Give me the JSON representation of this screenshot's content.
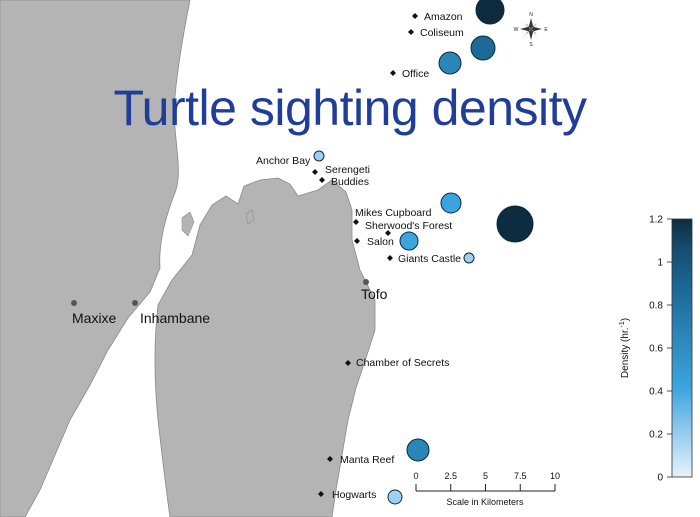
{
  "title": "Turtle sighting density",
  "towns": [
    {
      "name": "Maxixe"
    },
    {
      "name": "Inhambane"
    },
    {
      "name": "Tofo"
    }
  ],
  "sites": [
    {
      "name": "Amazon",
      "density": 1.1
    },
    {
      "name": "Coliseum",
      "density": 0.7
    },
    {
      "name": "Office",
      "density": 0.5
    },
    {
      "name": "Anchor Bay",
      "density": 0.2
    },
    {
      "name": "Serengeti",
      "density": 0.0
    },
    {
      "name": "Buddies",
      "density": 0.0
    },
    {
      "name": "Mikes Cupboard",
      "density": 0.4
    },
    {
      "name": "Sherwood's Forest",
      "density": 1.2
    },
    {
      "name": "Salon",
      "density": 0.3
    },
    {
      "name": "Giants Castle",
      "density": 0.1
    },
    {
      "name": "Chamber of Secrets",
      "density": 0.0
    },
    {
      "name": "Manta Reef",
      "density": 0.6
    },
    {
      "name": "Hogwarts",
      "density": 0.2
    }
  ],
  "legend": {
    "label": "Density (hr.",
    "label_sup": "-1",
    "label_end": ")",
    "min": 0,
    "max": 1.2,
    "ticks": [
      "0",
      "0.2",
      "0.4",
      "0.6",
      "0.8",
      "1",
      "1.2"
    ],
    "colors": [
      "#e8f2fc",
      "#9fd0f1",
      "#3aa4dc",
      "#2c85b8",
      "#1c6a98",
      "#154e70",
      "#0d2c40"
    ]
  },
  "scale_bar": {
    "ticks": [
      "0",
      "2.5",
      "5",
      "7.5",
      "10"
    ],
    "label": "Scale in Kilometers"
  },
  "compass": {
    "n": "N",
    "s": "S",
    "e": "E",
    "w": "W"
  },
  "colors": {
    "land": "#b4b4b4",
    "water": "#ffffff",
    "coast": "#8a8a8a",
    "title": "#1f3d99",
    "marker_stroke": "#0a2a3a"
  }
}
